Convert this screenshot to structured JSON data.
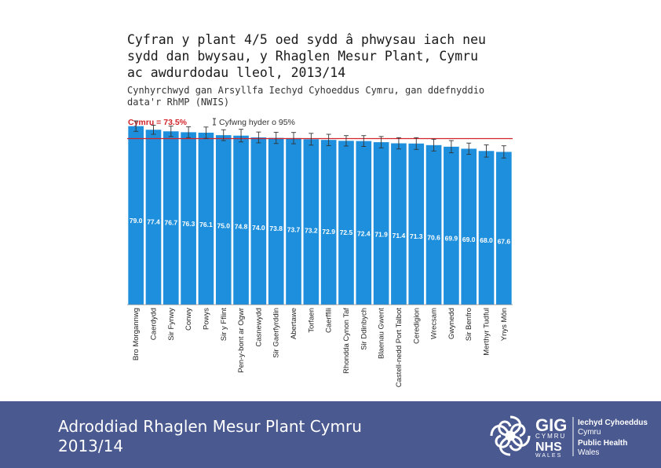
{
  "header": {
    "title_lines": [
      "Cyfran y plant 4/5 oed sydd â phwysau iach neu",
      "sydd dan bwysau, y Rhaglen Mesur Plant, Cymru",
      "ac awdurdodau lleol, 2013/14"
    ],
    "subtitle_lines": [
      "Cynhyrchwyd gan Arsyllfa Iechyd Cyhoeddus Cymru, gan ddefnyddio",
      "data'r RhMP (NWIS)"
    ]
  },
  "chart_data": {
    "type": "bar",
    "categories": [
      "Bro Morgannwg",
      "Caerdydd",
      "Sir Fynwy",
      "Conwy",
      "Powys",
      "Sir y Fflint",
      "Pen-y-bont ar Ogwr",
      "Casnewydd",
      "Sir Gaerfyrddin",
      "Abertawe",
      "Torfaen",
      "Caerffili",
      "Rhondda Cynon Taf",
      "Sir Ddinbych",
      "Blaenau Gwent",
      "Castell-nedd Port Talbot",
      "Ceredigion",
      "Wrecsam",
      "Gwynedd",
      "Sir Benfro",
      "Merthyr Tudful",
      "Ynys Môn"
    ],
    "values": [
      79.0,
      77.4,
      76.7,
      76.3,
      76.1,
      75.0,
      74.8,
      74.0,
      73.8,
      73.7,
      73.2,
      72.9,
      72.5,
      72.4,
      71.9,
      71.4,
      71.3,
      70.6,
      69.9,
      69.0,
      68.0,
      67.6
    ],
    "value_labels": [
      "79.0",
      "77.4",
      "76.7",
      "76.3",
      "76.1",
      "75.0",
      "74.8",
      "74.0",
      "73.8",
      "73.7",
      "73.2",
      "72.9",
      "72.5",
      "72.4",
      "71.9",
      "71.4",
      "71.3",
      "70.6",
      "69.9",
      "69.0",
      "68.0",
      "67.6"
    ],
    "ci_lower": [
      76.7,
      75.4,
      74.4,
      73.9,
      73.6,
      72.6,
      72.0,
      71.6,
      71.3,
      71.2,
      70.6,
      70.4,
      70.2,
      70.0,
      69.4,
      68.9,
      68.7,
      68.0,
      67.2,
      66.5,
      65.3,
      64.9
    ],
    "ci_upper": [
      81.3,
      79.4,
      79.0,
      78.7,
      78.6,
      77.4,
      77.6,
      76.4,
      76.3,
      76.2,
      75.8,
      75.4,
      74.8,
      74.8,
      74.4,
      73.9,
      73.9,
      73.2,
      72.6,
      71.5,
      70.7,
      70.3
    ],
    "reference": {
      "label": "Cymru = 73.5%",
      "value": 73.5,
      "color": "#d2232a"
    },
    "legend_ci_label": "Cyfwng hyder o 95%",
    "ylim": [
      0,
      82
    ],
    "bar_color": "#1e8fdc",
    "grid": false
  },
  "footer": {
    "title_lines": [
      "Adroddiad Rhaglen Mesur Plant Cymru",
      "2013/14"
    ],
    "background": "#4a5990",
    "logo": {
      "gig": "GIG",
      "cymru": "CYMRU",
      "nhs": "NHS",
      "wales": "WALES",
      "org_lines": [
        "Iechyd Cyhoeddus",
        "Cymru",
        "Public Health",
        "Wales"
      ]
    }
  }
}
